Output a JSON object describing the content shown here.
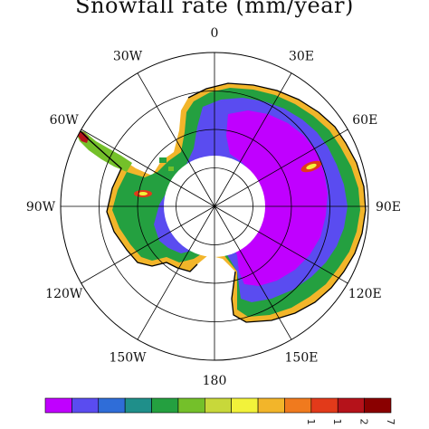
{
  "title": "Snowfall rate (mm/year)",
  "longitude_labels": [
    "0",
    "30E",
    "60E",
    "90E",
    "120E",
    "150E",
    "180",
    "150W",
    "120W",
    "90W",
    "60W",
    "30W"
  ],
  "colorbar": {
    "colors": [
      "#c000ff",
      "#5a4cf0",
      "#2f6dd8",
      "#1f8f8a",
      "#24a040",
      "#74c02a",
      "#c8d83a",
      "#f2f23a",
      "#f2b52a",
      "#f07a1e",
      "#e23a1a",
      "#b5121a",
      "#8a0000"
    ],
    "labels": [
      "1",
      "1",
      "2",
      "7"
    ]
  },
  "colors": {
    "interior": "#c000ff",
    "blue_band": "#5a4cf0",
    "green_band": "#24a040",
    "coast": "#8bd03a",
    "coastline": "#000000",
    "pole_hole": "#ffffff"
  }
}
